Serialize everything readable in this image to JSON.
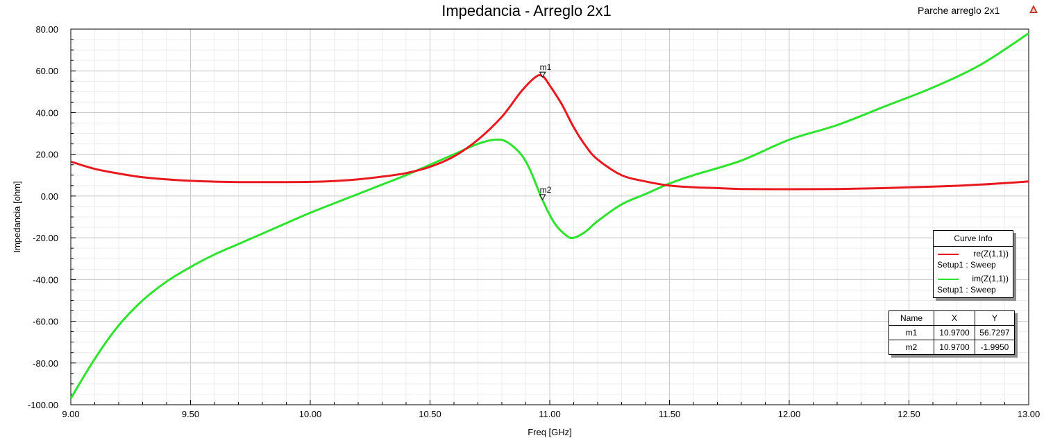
{
  "header": {
    "title": "Impedancia - Arreglo 2x1",
    "project": "Parche arreglo 2x1"
  },
  "chart_data": {
    "type": "line",
    "title": "Impedancia - Arreglo 2x1",
    "xlabel": "Freq [GHz]",
    "ylabel": "Impedancia [ohm]",
    "xlim": [
      9.0,
      13.0
    ],
    "ylim": [
      -100,
      80
    ],
    "x_ticks": [
      "9.00",
      "9.50",
      "10.00",
      "10.50",
      "11.00",
      "11.50",
      "12.00",
      "12.50",
      "13.00"
    ],
    "y_ticks": [
      "80.00",
      "60.00",
      "40.00",
      "20.00",
      "0.00",
      "-20.00",
      "-40.00",
      "-60.00",
      "-80.00",
      "-100.00"
    ],
    "grid": true,
    "legend_position": "right",
    "series": [
      {
        "name": "re(Z(1,1))",
        "setup": "Setup1 : Sweep",
        "color": "#e8191e",
        "points": [
          [
            9.0,
            16.5
          ],
          [
            9.1,
            13.0
          ],
          [
            9.2,
            10.8
          ],
          [
            9.3,
            9.0
          ],
          [
            9.4,
            8.0
          ],
          [
            9.5,
            7.3
          ],
          [
            9.6,
            6.9
          ],
          [
            9.7,
            6.7
          ],
          [
            9.8,
            6.7
          ],
          [
            9.9,
            6.7
          ],
          [
            10.0,
            6.8
          ],
          [
            10.1,
            7.2
          ],
          [
            10.2,
            8.0
          ],
          [
            10.3,
            9.3
          ],
          [
            10.4,
            11.0
          ],
          [
            10.5,
            14.0
          ],
          [
            10.6,
            19.0
          ],
          [
            10.7,
            27.0
          ],
          [
            10.8,
            38.0
          ],
          [
            10.88,
            50.0
          ],
          [
            10.94,
            57.0
          ],
          [
            10.97,
            57.5
          ],
          [
            11.0,
            53.0
          ],
          [
            11.05,
            44.0
          ],
          [
            11.1,
            33.0
          ],
          [
            11.15,
            24.0
          ],
          [
            11.2,
            17.5
          ],
          [
            11.3,
            10.0
          ],
          [
            11.4,
            7.0
          ],
          [
            11.5,
            5.0
          ],
          [
            11.6,
            4.2
          ],
          [
            11.7,
            3.8
          ],
          [
            11.8,
            3.4
          ],
          [
            12.0,
            3.3
          ],
          [
            12.2,
            3.4
          ],
          [
            12.4,
            3.8
          ],
          [
            12.6,
            4.5
          ],
          [
            12.8,
            5.5
          ],
          [
            13.0,
            7.0
          ]
        ]
      },
      {
        "name": "im(Z(1,1))",
        "setup": "Setup1 : Sweep",
        "color": "#2de32d",
        "points": [
          [
            9.0,
            -97.0
          ],
          [
            9.1,
            -78.0
          ],
          [
            9.2,
            -62.0
          ],
          [
            9.3,
            -50.0
          ],
          [
            9.4,
            -41.0
          ],
          [
            9.5,
            -34.0
          ],
          [
            9.6,
            -28.0
          ],
          [
            9.7,
            -23.0
          ],
          [
            9.8,
            -18.0
          ],
          [
            9.9,
            -13.0
          ],
          [
            10.0,
            -8.0
          ],
          [
            10.1,
            -3.5
          ],
          [
            10.2,
            1.0
          ],
          [
            10.3,
            5.5
          ],
          [
            10.4,
            10.0
          ],
          [
            10.5,
            15.0
          ],
          [
            10.6,
            20.0
          ],
          [
            10.7,
            25.0
          ],
          [
            10.77,
            27.0
          ],
          [
            10.82,
            26.0
          ],
          [
            10.88,
            20.0
          ],
          [
            10.92,
            12.0
          ],
          [
            10.97,
            -2.0
          ],
          [
            11.02,
            -13.0
          ],
          [
            11.07,
            -19.0
          ],
          [
            11.1,
            -20.0
          ],
          [
            11.15,
            -17.0
          ],
          [
            11.2,
            -12.0
          ],
          [
            11.3,
            -4.0
          ],
          [
            11.4,
            1.0
          ],
          [
            11.5,
            6.0
          ],
          [
            11.6,
            10.0
          ],
          [
            11.8,
            17.0
          ],
          [
            12.0,
            27.0
          ],
          [
            12.2,
            34.0
          ],
          [
            12.4,
            43.0
          ],
          [
            12.6,
            52.0
          ],
          [
            12.8,
            63.0
          ],
          [
            13.0,
            78.0
          ]
        ]
      }
    ],
    "markers": [
      {
        "name": "m1",
        "x": 10.97,
        "y": 56.7297,
        "x_text": "10.9700",
        "y_text": "56.7297"
      },
      {
        "name": "m2",
        "x": 10.97,
        "y": -1.995,
        "x_text": "10.9700",
        "y_text": "-1.9950"
      }
    ]
  },
  "legend": {
    "header": "Curve Info",
    "entries": [
      {
        "name": "re(Z(1,1))",
        "setup": "Setup1 : Sweep",
        "color": "#e8191e"
      },
      {
        "name": "im(Z(1,1))",
        "setup": "Setup1 : Sweep",
        "color": "#2de32d"
      }
    ]
  },
  "marker_table": {
    "headers": [
      "Name",
      "X",
      "Y"
    ],
    "rows": [
      [
        "m1",
        "10.9700",
        "56.7297"
      ],
      [
        "m2",
        "10.9700",
        "-1.9950"
      ]
    ]
  }
}
